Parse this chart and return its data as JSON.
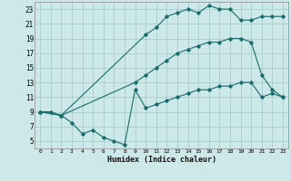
{
  "background_color": "#cce8e8",
  "grid_color": "#aacccc",
  "line_color": "#1a6b6b",
  "marker_color": "#1a6b6b",
  "xlabel": "Humidex (Indice chaleur)",
  "xlim": [
    -0.5,
    23.5
  ],
  "ylim": [
    4,
    24
  ],
  "xticks": [
    0,
    1,
    2,
    3,
    4,
    5,
    6,
    7,
    8,
    9,
    10,
    11,
    12,
    13,
    14,
    15,
    16,
    17,
    18,
    19,
    20,
    21,
    22,
    23
  ],
  "yticks": [
    5,
    7,
    9,
    11,
    13,
    15,
    17,
    19,
    21,
    23
  ],
  "line1_x": [
    0,
    1,
    2,
    3,
    4,
    5,
    6,
    7,
    8,
    9,
    10,
    11,
    12,
    13,
    14,
    15,
    16,
    17,
    18,
    19,
    20,
    21,
    22,
    23
  ],
  "line1_y": [
    9,
    9,
    8.5,
    7.5,
    6,
    6.5,
    5.5,
    5,
    4.5,
    12,
    9.5,
    10,
    10.5,
    11,
    11.5,
    12,
    12,
    12.5,
    12.5,
    13,
    13,
    11,
    11.5,
    11
  ],
  "line2_x": [
    0,
    2,
    9,
    10,
    11,
    12,
    13,
    14,
    15,
    16,
    17,
    18,
    19,
    20,
    21,
    22,
    23
  ],
  "line2_y": [
    9,
    8.5,
    13,
    14,
    15,
    16,
    17,
    17.5,
    18,
    18.5,
    18.5,
    19,
    19,
    18.5,
    14,
    12,
    11
  ],
  "line3_x": [
    0,
    2,
    10,
    11,
    12,
    13,
    14,
    15,
    16,
    17,
    18,
    19,
    20,
    21,
    22,
    23
  ],
  "line3_y": [
    9,
    8.5,
    19.5,
    20.5,
    22,
    22.5,
    23,
    22.5,
    23.5,
    23,
    23,
    21.5,
    21.5,
    22,
    22,
    22
  ]
}
